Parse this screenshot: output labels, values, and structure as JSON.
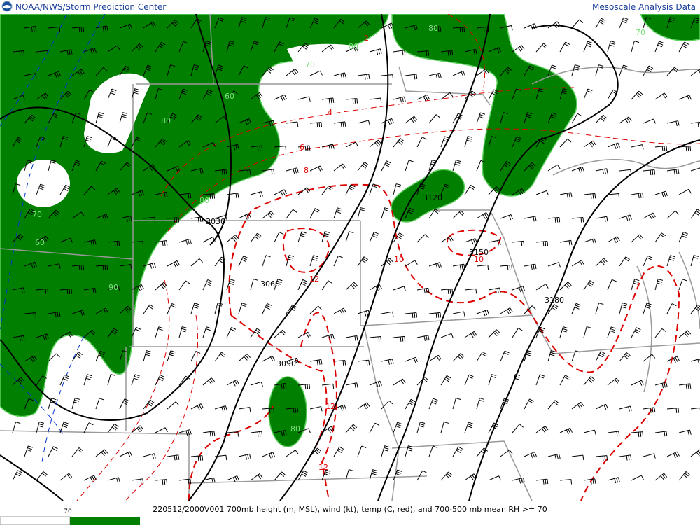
{
  "header": {
    "left": "NOAA/NWS/Storm Prediction Center",
    "right": "Mesoscale Analysis Data"
  },
  "footer": {
    "caption": "220512/2000V001 700mb height (m, MSL), wind (kt), temp (C, red), and 700-500 mb mean RH >= 70"
  },
  "legend": {
    "label": "70"
  },
  "height_labels": [
    "3030",
    "3060",
    "3090",
    "3120",
    "3150",
    "3180"
  ],
  "temp_labels": [
    "4",
    "6",
    "8",
    "10",
    "10",
    "12",
    "12",
    "2",
    "12"
  ],
  "rh_labels": [
    "80",
    "80",
    "60",
    "80",
    "70",
    "60",
    "90",
    "80",
    "70",
    "80",
    "70"
  ]
}
